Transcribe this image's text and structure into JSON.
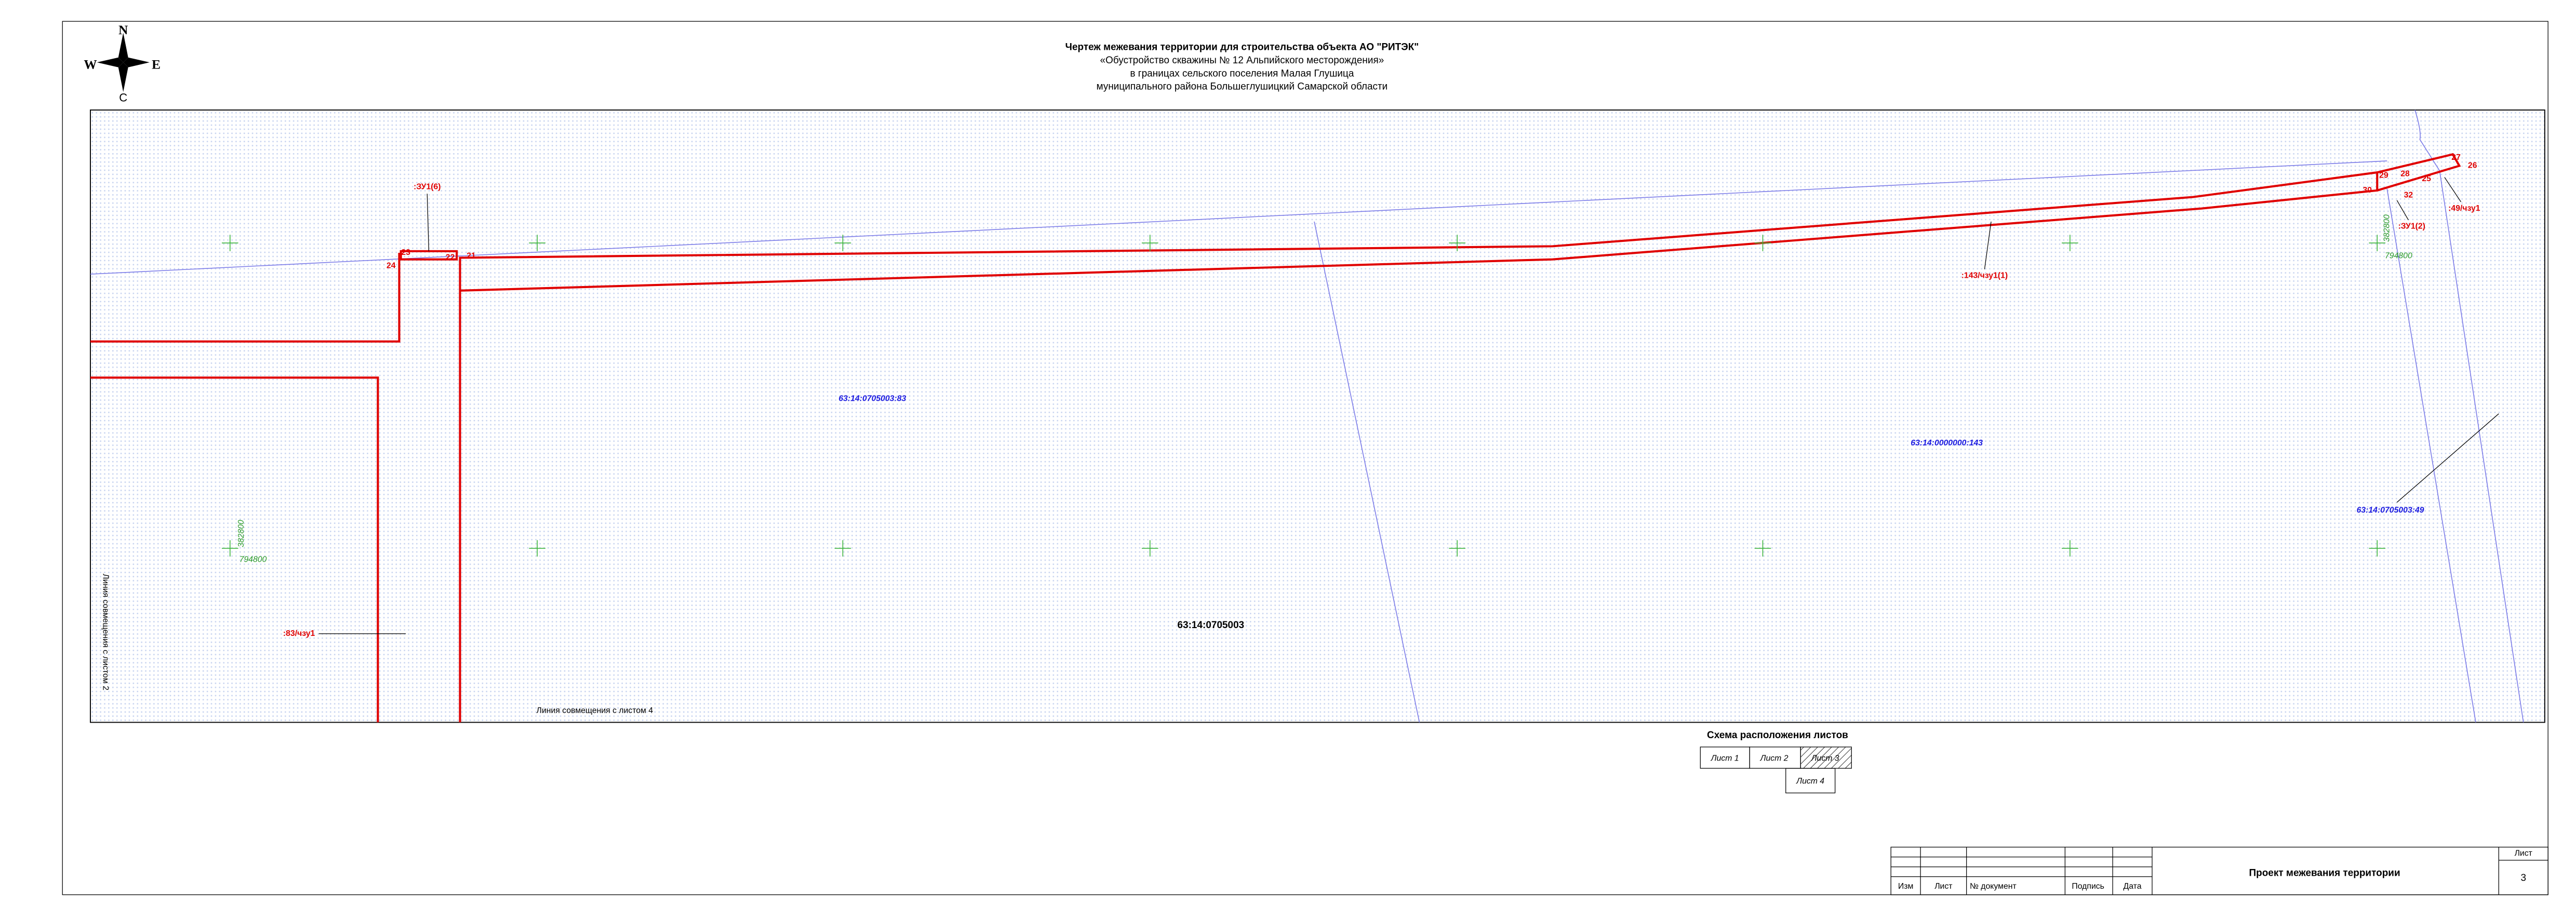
{
  "compass": {
    "north": "N",
    "west": "W",
    "east": "E",
    "south": "С"
  },
  "header": {
    "title": "Чертеж межевания территории для строительства объекта АО \"РИТЭК\"",
    "lines": [
      "«Обустройство скважины № 12 Альпийского месторождения»",
      "в границах сельского поселения Малая Глушица",
      "муниципального района Большеглушицкий Самарской области"
    ]
  },
  "map": {
    "parcels": [
      "63:14:0705003:83",
      "63:14:0000000:143",
      "63:14:0705003:49"
    ],
    "quarter": "63:14:0705003",
    "zones": [
      ":ЗУ1(6)",
      ":143/чзу1(1)",
      ":ЗУ1(2)",
      ":49/чзу1",
      ":83/чзу1"
    ],
    "points": [
      "21",
      "22",
      "23",
      "24",
      "25",
      "26",
      "27",
      "28",
      "29",
      "30",
      "32"
    ],
    "grid": [
      {
        "x": "382800",
        "y": "794800"
      },
      {
        "x": "382800",
        "y": "794800"
      }
    ],
    "join_lines": [
      "Линия совмещения с листом 4",
      "Линия совмещения с листом 2"
    ]
  },
  "sheet_scheme": {
    "title": "Схема расположения листов",
    "sheets": [
      "Лист 1",
      "Лист 2",
      "Лист 3",
      "Лист 4"
    ]
  },
  "title_block": {
    "columns": [
      "Изм",
      "Лист",
      "№ документ",
      "Подпись",
      "Дата"
    ],
    "name": "Проект межевания территории",
    "sheet_label": "Лист",
    "sheet_number": "3"
  }
}
